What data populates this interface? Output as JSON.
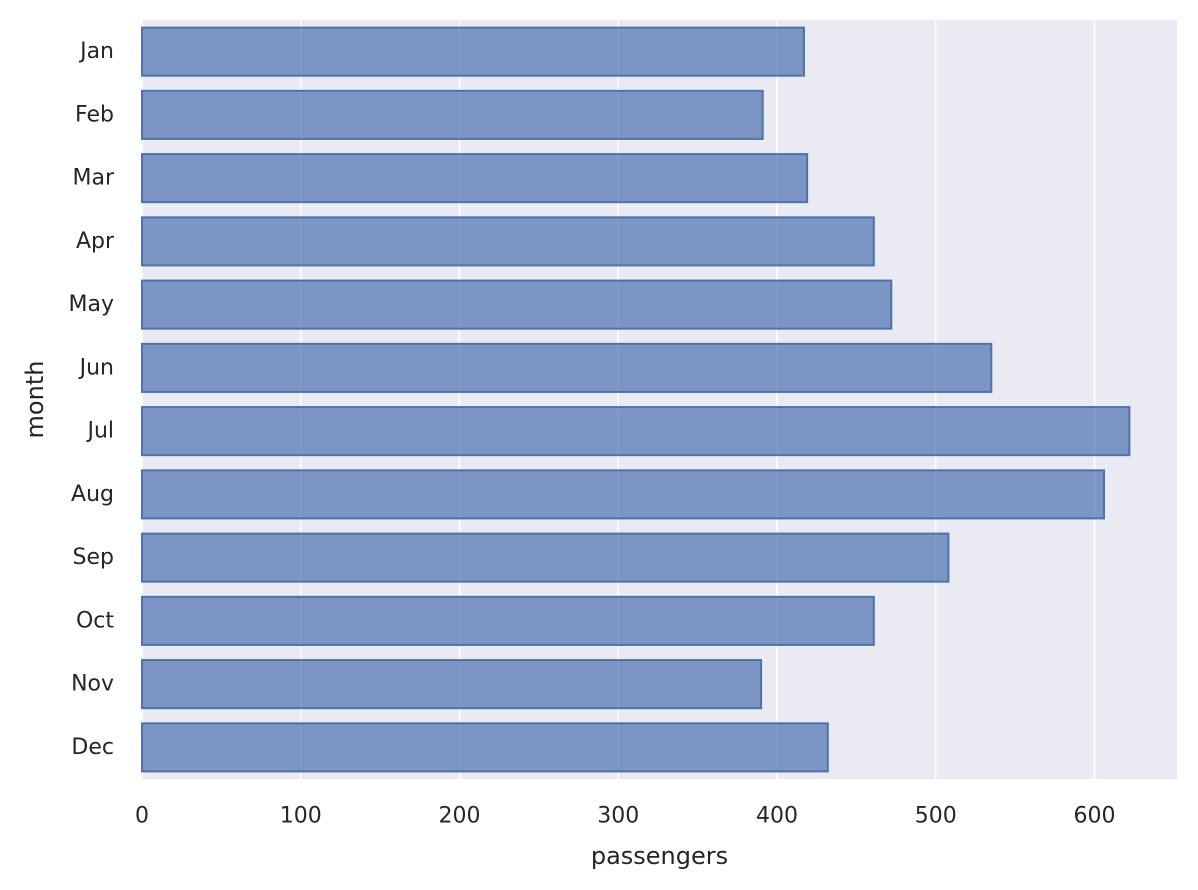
{
  "chart_data": {
    "type": "bar",
    "orientation": "horizontal",
    "categories": [
      "Jan",
      "Feb",
      "Mar",
      "Apr",
      "May",
      "Jun",
      "Jul",
      "Aug",
      "Sep",
      "Oct",
      "Nov",
      "Dec"
    ],
    "values": [
      417,
      391,
      419,
      461,
      472,
      535,
      622,
      606,
      508,
      461,
      390,
      432
    ],
    "xlabel": "passengers",
    "ylabel": "month",
    "xlim": [
      0,
      652
    ],
    "xticks": [
      0,
      100,
      200,
      300,
      400,
      500,
      600
    ],
    "grid": true,
    "legend": "none",
    "colors": {
      "background": "#eaeaf2",
      "grid": "#ffffff",
      "bar_fill": "#4c72b0",
      "bar_edge": "#4c72b0"
    }
  }
}
